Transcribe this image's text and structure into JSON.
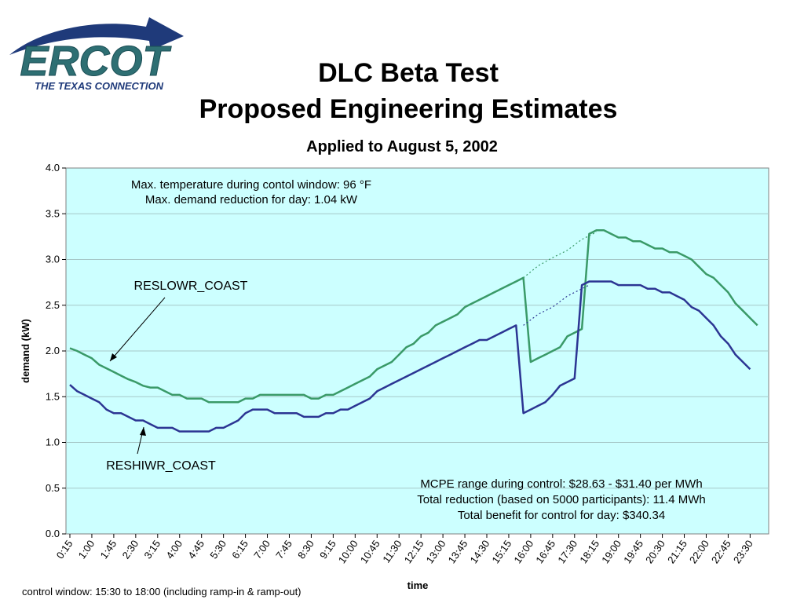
{
  "logo": {
    "brand": "ERCOT",
    "tagline": "THE TEXAS CONNECTION",
    "colors": {
      "brand": "#2e6f73",
      "swoosh": "#1f3a7a"
    }
  },
  "title": {
    "line1": "DLC Beta Test",
    "line2": "Proposed Engineering Estimates"
  },
  "footnote": "control window: 15:30 to 18:00  (including ramp-in & ramp-out)",
  "chart_data": {
    "type": "line",
    "subtitle": "Applied to August 5, 2002",
    "xlabel": "time",
    "ylabel": "demand (kW)",
    "ylim": [
      0,
      4
    ],
    "yticks": [
      "0.0",
      "0.5",
      "1.0",
      "1.5",
      "2.0",
      "2.5",
      "3.0",
      "3.5",
      "4.0"
    ],
    "grid": true,
    "x_tick_labels": [
      "0:15",
      "1:00",
      "1:45",
      "2:30",
      "3:15",
      "4:00",
      "4:45",
      "5:30",
      "6:15",
      "7:00",
      "7:45",
      "8:30",
      "9:15",
      "10:00",
      "10:45",
      "11:30",
      "12:15",
      "13:00",
      "13:45",
      "14:30",
      "15:15",
      "16:00",
      "16:45",
      "17:30",
      "18:15",
      "19:00",
      "19:45",
      "20:30",
      "21:15",
      "22:00",
      "22:45",
      "23:30"
    ],
    "x": [
      "0:15",
      "0:30",
      "0:45",
      "1:00",
      "1:15",
      "1:30",
      "1:45",
      "2:00",
      "2:15",
      "2:30",
      "2:45",
      "3:00",
      "3:15",
      "3:30",
      "3:45",
      "4:00",
      "4:15",
      "4:30",
      "4:45",
      "5:00",
      "5:15",
      "5:30",
      "5:45",
      "6:00",
      "6:15",
      "6:30",
      "6:45",
      "7:00",
      "7:15",
      "7:30",
      "7:45",
      "8:00",
      "8:15",
      "8:30",
      "8:45",
      "9:00",
      "9:15",
      "9:30",
      "9:45",
      "10:00",
      "10:15",
      "10:30",
      "10:45",
      "11:00",
      "11:15",
      "11:30",
      "11:45",
      "12:00",
      "12:15",
      "12:30",
      "12:45",
      "13:00",
      "13:15",
      "13:30",
      "13:45",
      "14:00",
      "14:15",
      "14:30",
      "14:45",
      "15:00",
      "15:15",
      "15:30",
      "15:45",
      "16:00",
      "16:15",
      "16:30",
      "16:45",
      "17:00",
      "17:15",
      "17:30",
      "17:45",
      "18:00",
      "18:15",
      "18:30",
      "18:45",
      "19:00",
      "19:15",
      "19:30",
      "19:45",
      "20:00",
      "20:15",
      "20:30",
      "20:45",
      "21:00",
      "21:15",
      "21:30",
      "21:45",
      "22:00",
      "22:15",
      "22:30",
      "22:45",
      "23:00",
      "23:15",
      "23:30",
      "23:45",
      "24:00"
    ],
    "series": [
      {
        "name": "RESLOWR_COAST",
        "color": "#3a9a68",
        "values": [
          2.03,
          2.0,
          1.96,
          1.92,
          1.85,
          1.81,
          1.77,
          1.73,
          1.69,
          1.66,
          1.62,
          1.6,
          1.6,
          1.56,
          1.52,
          1.52,
          1.48,
          1.48,
          1.48,
          1.44,
          1.44,
          1.44,
          1.44,
          1.44,
          1.48,
          1.48,
          1.52,
          1.52,
          1.52,
          1.52,
          1.52,
          1.52,
          1.52,
          1.48,
          1.48,
          1.52,
          1.52,
          1.56,
          1.6,
          1.64,
          1.68,
          1.72,
          1.8,
          1.84,
          1.88,
          1.96,
          2.04,
          2.08,
          2.16,
          2.2,
          2.28,
          2.32,
          2.36,
          2.4,
          2.48,
          2.52,
          2.56,
          2.6,
          2.64,
          2.68,
          2.72,
          2.76,
          2.8,
          1.88,
          1.92,
          1.96,
          2.0,
          2.04,
          2.16,
          2.2,
          2.24,
          3.28,
          3.32,
          3.32,
          3.28,
          3.24,
          3.24,
          3.2,
          3.2,
          3.16,
          3.12,
          3.12,
          3.08,
          3.08,
          3.04,
          3.0,
          2.92,
          2.84,
          2.8,
          2.72,
          2.64,
          2.52,
          2.44,
          2.36,
          2.28,
          null
        ]
      },
      {
        "name": "RESHIWR_COAST",
        "color": "#2c3593",
        "values": [
          1.63,
          1.56,
          1.52,
          1.48,
          1.44,
          1.36,
          1.32,
          1.32,
          1.28,
          1.24,
          1.24,
          1.2,
          1.16,
          1.16,
          1.16,
          1.12,
          1.12,
          1.12,
          1.12,
          1.12,
          1.16,
          1.16,
          1.2,
          1.24,
          1.32,
          1.36,
          1.36,
          1.36,
          1.32,
          1.32,
          1.32,
          1.32,
          1.28,
          1.28,
          1.28,
          1.32,
          1.32,
          1.36,
          1.36,
          1.4,
          1.44,
          1.48,
          1.56,
          1.6,
          1.64,
          1.68,
          1.72,
          1.76,
          1.8,
          1.84,
          1.88,
          1.92,
          1.96,
          2.0,
          2.04,
          2.08,
          2.12,
          2.12,
          2.16,
          2.2,
          2.24,
          2.28,
          1.32,
          1.36,
          1.4,
          1.44,
          1.52,
          1.62,
          1.66,
          1.7,
          2.72,
          2.76,
          2.76,
          2.76,
          2.76,
          2.72,
          2.72,
          2.72,
          2.72,
          2.68,
          2.68,
          2.64,
          2.64,
          2.6,
          2.56,
          2.48,
          2.44,
          2.36,
          2.28,
          2.16,
          2.08,
          1.96,
          1.88,
          1.8,
          null,
          null
        ]
      }
    ],
    "baseline_dashed": [
      {
        "series": "RESLOWR_COAST",
        "x": [
          "15:45",
          "16:15",
          "16:45",
          "17:15",
          "17:45",
          "18:15"
        ],
        "values": [
          2.8,
          2.93,
          3.02,
          3.1,
          3.22,
          3.3
        ]
      },
      {
        "series": "RESHIWR_COAST",
        "x": [
          "15:45",
          "16:15",
          "16:45",
          "17:15",
          "17:45",
          "18:00"
        ],
        "values": [
          2.28,
          2.4,
          2.48,
          2.6,
          2.68,
          2.72
        ]
      }
    ],
    "annotations": {
      "top_left": [
        "Max. temperature during contol window:  96 °F",
        "Max. demand reduction for day:  1.04 kW"
      ],
      "bottom_right": [
        "MCPE range during control: $28.63 - $31.40 per MWh",
        "Total reduction (based on 5000 participants):  11.4 MWh",
        "Total benefit for control for day: $340.34"
      ],
      "series_labels": [
        "RESLOWR_COAST",
        "RESHIWR_COAST"
      ]
    },
    "colors": {
      "plot_background": "#ccffff",
      "gridline": "#a6c8c8"
    }
  }
}
